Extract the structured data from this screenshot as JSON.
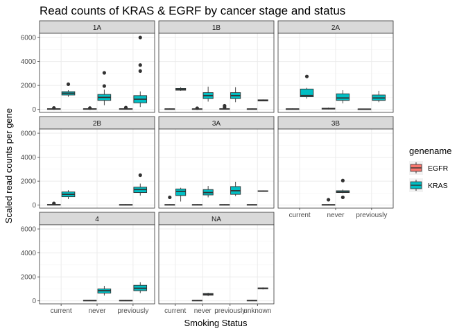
{
  "chart_data": {
    "type": "boxplot",
    "title": "Read counts of KRAS & EGRF by cancer stage and status",
    "xlabel": "Smoking Status",
    "ylabel": "Scaled read counts per gene",
    "ylim": [
      -250,
      6350
    ],
    "yticks": [
      0,
      2000,
      4000,
      6000
    ],
    "categories": [
      "current",
      "never",
      "previously",
      "unknown"
    ],
    "facet_layout": "3x3 grid, free x scales",
    "grid": true,
    "legend": {
      "title": "genename",
      "position": "right",
      "entries": [
        {
          "name": "EGFR",
          "color": "#F8766D"
        },
        {
          "name": "KRAS",
          "color": "#00BFC4"
        }
      ]
    },
    "panels": [
      {
        "label": "1A",
        "boxes": [
          {
            "x": "current",
            "gene": "EGFR",
            "min": 0,
            "q1": 10,
            "median": 30,
            "q3": 60,
            "max": 100,
            "outliers": [
              120
            ]
          },
          {
            "x": "current",
            "gene": "KRAS",
            "min": 1050,
            "q1": 1200,
            "median": 1350,
            "q3": 1480,
            "max": 1600,
            "outliers": [
              2100
            ]
          },
          {
            "x": "never",
            "gene": "EGFR",
            "min": 0,
            "q1": 10,
            "median": 30,
            "q3": 60,
            "max": 100,
            "outliers": [
              110
            ]
          },
          {
            "x": "never",
            "gene": "KRAS",
            "min": 350,
            "q1": 750,
            "median": 1000,
            "q3": 1250,
            "max": 1650,
            "outliers": [
              1950,
              3050
            ]
          },
          {
            "x": "previously",
            "gene": "EGFR",
            "min": 0,
            "q1": 10,
            "median": 30,
            "q3": 60,
            "max": 100,
            "outliers": [
              150
            ]
          },
          {
            "x": "previously",
            "gene": "KRAS",
            "min": 200,
            "q1": 550,
            "median": 850,
            "q3": 1150,
            "max": 1500,
            "outliers": [
              3200,
              3700,
              6000
            ]
          }
        ]
      },
      {
        "label": "1B",
        "boxes": [
          {
            "x": "current",
            "gene": "EGFR",
            "min": 0,
            "q1": 15,
            "median": 30,
            "q3": 50,
            "max": 80,
            "outliers": []
          },
          {
            "x": "current",
            "gene": "KRAS",
            "min": 1550,
            "q1": 1600,
            "median": 1680,
            "q3": 1750,
            "max": 1850,
            "outliers": []
          },
          {
            "x": "never",
            "gene": "EGFR",
            "min": 0,
            "q1": 15,
            "median": 30,
            "q3": 50,
            "max": 80,
            "outliers": [
              100
            ]
          },
          {
            "x": "never",
            "gene": "KRAS",
            "min": 650,
            "q1": 900,
            "median": 1150,
            "q3": 1400,
            "max": 1900,
            "outliers": []
          },
          {
            "x": "previously",
            "gene": "EGFR",
            "min": 0,
            "q1": 10,
            "median": 30,
            "q3": 60,
            "max": 100,
            "outliers": [
              180,
              300
            ]
          },
          {
            "x": "previously",
            "gene": "KRAS",
            "min": 600,
            "q1": 900,
            "median": 1150,
            "q3": 1400,
            "max": 1850,
            "outliers": []
          },
          {
            "x": "unknown",
            "gene": "EGFR",
            "min": 0,
            "q1": 15,
            "median": 30,
            "q3": 50,
            "max": 80,
            "outliers": []
          },
          {
            "x": "unknown",
            "gene": "KRAS",
            "min": 680,
            "q1": 700,
            "median": 750,
            "q3": 800,
            "max": 830,
            "outliers": []
          }
        ]
      },
      {
        "label": "2A",
        "boxes": [
          {
            "x": "current",
            "gene": "EGFR",
            "min": 0,
            "q1": 15,
            "median": 30,
            "q3": 50,
            "max": 80,
            "outliers": []
          },
          {
            "x": "current",
            "gene": "KRAS",
            "min": 900,
            "q1": 1050,
            "median": 1150,
            "q3": 1700,
            "max": 1800,
            "outliers": [
              2750
            ]
          },
          {
            "x": "never",
            "gene": "EGFR",
            "min": 0,
            "q1": 20,
            "median": 60,
            "q3": 100,
            "max": 150,
            "outliers": []
          },
          {
            "x": "never",
            "gene": "KRAS",
            "min": 500,
            "q1": 750,
            "median": 950,
            "q3": 1300,
            "max": 1600,
            "outliers": []
          },
          {
            "x": "previously",
            "gene": "EGFR",
            "min": 0,
            "q1": 10,
            "median": 20,
            "q3": 40,
            "max": 60,
            "outliers": []
          },
          {
            "x": "previously",
            "gene": "KRAS",
            "min": 600,
            "q1": 750,
            "median": 950,
            "q3": 1200,
            "max": 1550,
            "outliers": []
          }
        ]
      },
      {
        "label": "2B",
        "boxes": [
          {
            "x": "current",
            "gene": "EGFR",
            "min": 0,
            "q1": 10,
            "median": 30,
            "q3": 60,
            "max": 100,
            "outliers": [
              150
            ]
          },
          {
            "x": "current",
            "gene": "KRAS",
            "min": 500,
            "q1": 700,
            "median": 900,
            "q3": 1100,
            "max": 1250,
            "outliers": []
          },
          {
            "x": "previously",
            "gene": "EGFR",
            "min": 0,
            "q1": 15,
            "median": 30,
            "q3": 50,
            "max": 80,
            "outliers": []
          },
          {
            "x": "previously",
            "gene": "KRAS",
            "min": 800,
            "q1": 1050,
            "median": 1300,
            "q3": 1500,
            "max": 1800,
            "outliers": [
              2500
            ]
          }
        ]
      },
      {
        "label": "3A",
        "boxes": [
          {
            "x": "current",
            "gene": "EGFR",
            "min": 0,
            "q1": 15,
            "median": 30,
            "q3": 50,
            "max": 80,
            "outliers": [
              650
            ]
          },
          {
            "x": "current",
            "gene": "KRAS",
            "min": 300,
            "q1": 800,
            "median": 1150,
            "q3": 1350,
            "max": 1450,
            "outliers": []
          },
          {
            "x": "never",
            "gene": "EGFR",
            "min": 0,
            "q1": 15,
            "median": 30,
            "q3": 50,
            "max": 80,
            "outliers": []
          },
          {
            "x": "never",
            "gene": "KRAS",
            "min": 650,
            "q1": 850,
            "median": 1050,
            "q3": 1300,
            "max": 1600,
            "outliers": []
          },
          {
            "x": "previously",
            "gene": "EGFR",
            "min": 0,
            "q1": 15,
            "median": 30,
            "q3": 50,
            "max": 80,
            "outliers": []
          },
          {
            "x": "previously",
            "gene": "KRAS",
            "min": 750,
            "q1": 900,
            "median": 1200,
            "q3": 1550,
            "max": 1950,
            "outliers": []
          },
          {
            "x": "unknown",
            "gene": "EGFR",
            "min": 0,
            "q1": 15,
            "median": 30,
            "q3": 50,
            "max": 80,
            "outliers": []
          },
          {
            "x": "unknown",
            "gene": "KRAS",
            "min": 1120,
            "q1": 1150,
            "median": 1170,
            "q3": 1200,
            "max": 1230,
            "outliers": []
          }
        ]
      },
      {
        "label": "3B",
        "boxes": [
          {
            "x": "never",
            "gene": "EGFR",
            "min": 0,
            "q1": 15,
            "median": 30,
            "q3": 50,
            "max": 80,
            "outliers": [
              450
            ]
          },
          {
            "x": "never",
            "gene": "KRAS",
            "min": 1000,
            "q1": 1050,
            "median": 1100,
            "q3": 1200,
            "max": 1300,
            "outliers": [
              650,
              2050
            ]
          }
        ]
      },
      {
        "label": "4",
        "boxes": [
          {
            "x": "never",
            "gene": "EGFR",
            "min": 0,
            "q1": 15,
            "median": 30,
            "q3": 50,
            "max": 80,
            "outliers": []
          },
          {
            "x": "never",
            "gene": "KRAS",
            "min": 450,
            "q1": 650,
            "median": 850,
            "q3": 1000,
            "max": 1250,
            "outliers": []
          },
          {
            "x": "previously",
            "gene": "EGFR",
            "min": 0,
            "q1": 15,
            "median": 30,
            "q3": 50,
            "max": 80,
            "outliers": []
          },
          {
            "x": "previously",
            "gene": "KRAS",
            "min": 650,
            "q1": 850,
            "median": 1050,
            "q3": 1300,
            "max": 1550,
            "outliers": []
          }
        ]
      },
      {
        "label": "NA",
        "boxes": [
          {
            "x": "never",
            "gene": "EGFR",
            "min": 0,
            "q1": 15,
            "median": 30,
            "q3": 50,
            "max": 80,
            "outliers": []
          },
          {
            "x": "never",
            "gene": "KRAS",
            "min": 400,
            "q1": 480,
            "median": 550,
            "q3": 620,
            "max": 680,
            "outliers": []
          },
          {
            "x": "unknown",
            "gene": "EGFR",
            "min": 0,
            "q1": 15,
            "median": 30,
            "q3": 50,
            "max": 80,
            "outliers": []
          },
          {
            "x": "unknown",
            "gene": "KRAS",
            "min": 950,
            "q1": 1000,
            "median": 1050,
            "q3": 1080,
            "max": 1120,
            "outliers": []
          }
        ]
      }
    ]
  }
}
